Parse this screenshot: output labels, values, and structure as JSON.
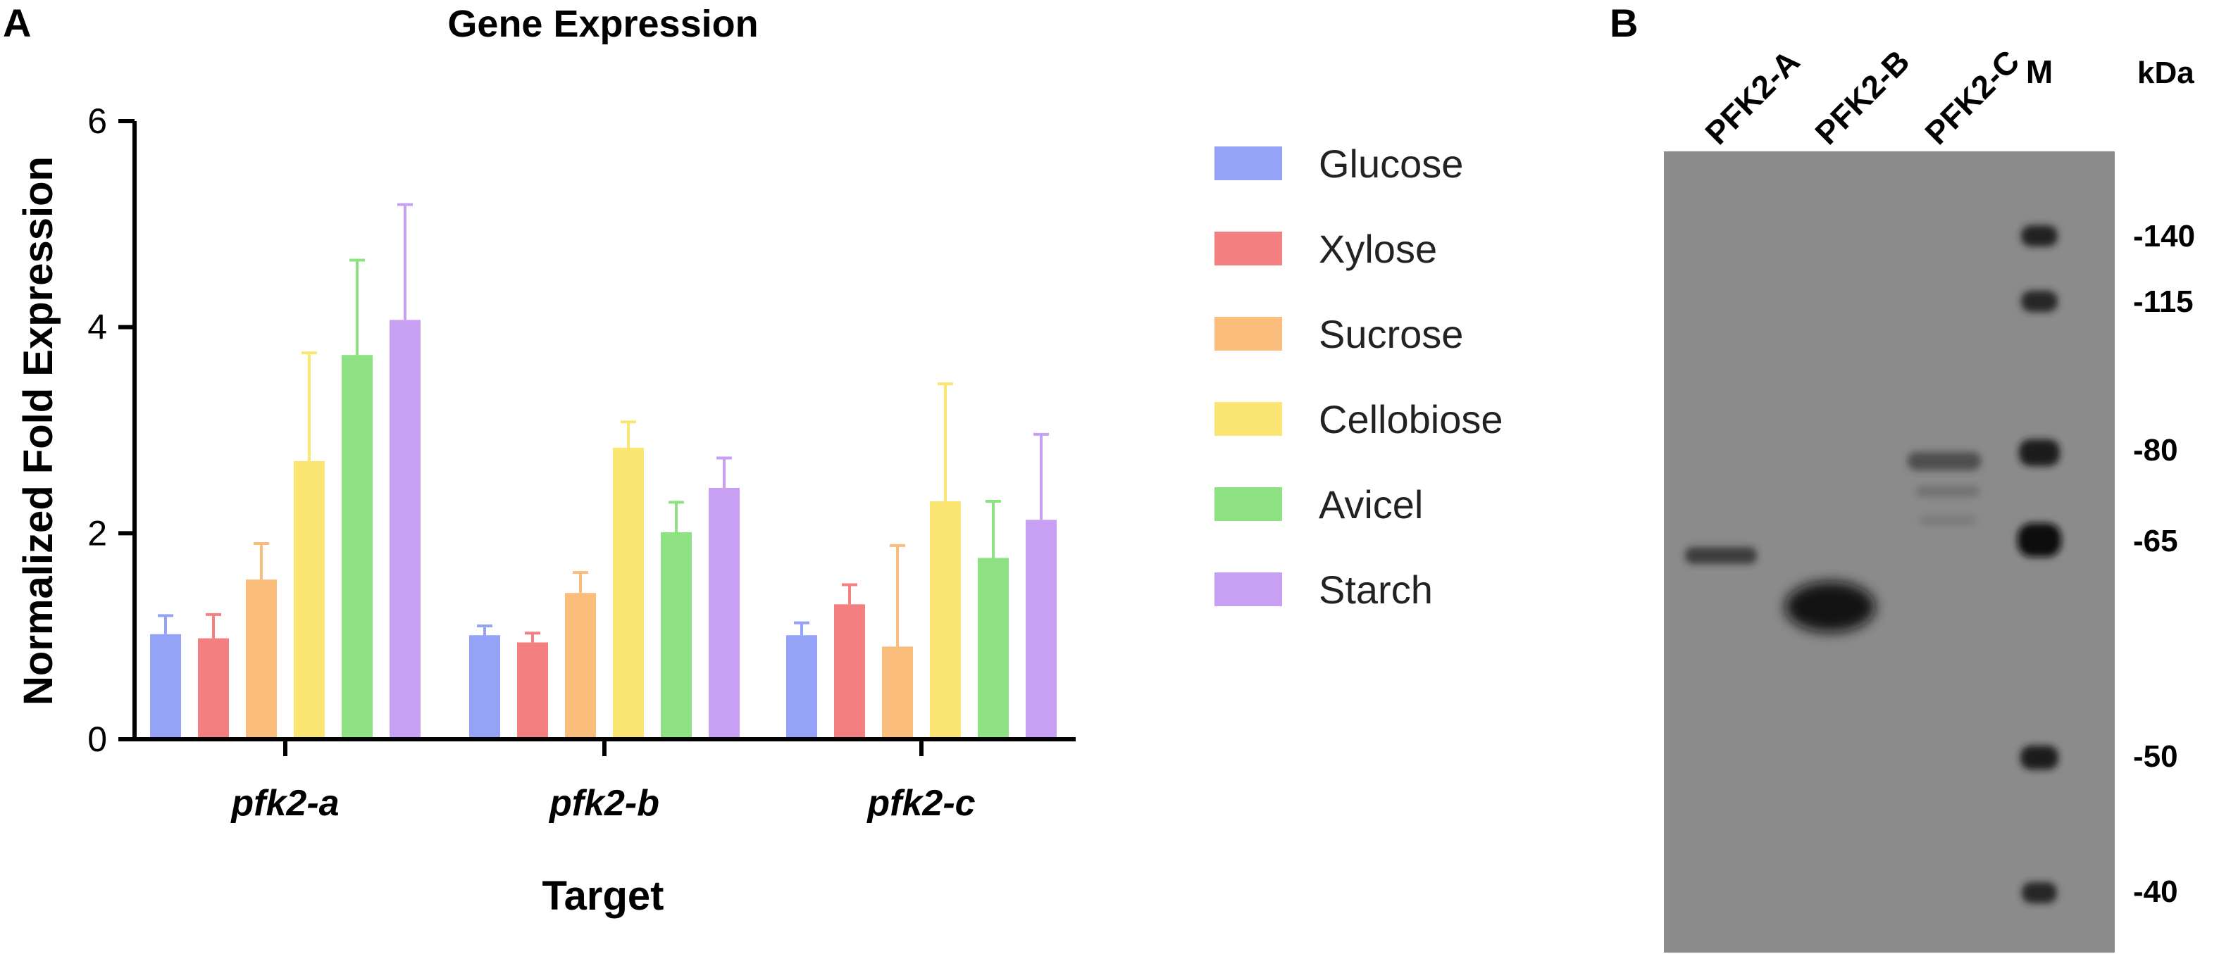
{
  "panel_a_label": "A",
  "panel_b_label": "B",
  "colors": {
    "Glucose": "#94a3f5",
    "Xylose": "#f47f80",
    "Sucrose": "#fbbd7c",
    "Cellobiose": "#fbe673",
    "Avicel": "#8ee283",
    "Starch": "#c7a0f4",
    "gel_background": "#8b8b8b"
  },
  "chart_data": {
    "type": "bar",
    "title": "Gene Expression",
    "xlabel": "Target",
    "ylabel": "Normalized Fold Expression",
    "ylim": [
      0,
      6
    ],
    "yticks": [
      "0",
      "2",
      "4",
      "6"
    ],
    "categories": [
      "pfk2-a",
      "pfk2-b",
      "pfk2-c"
    ],
    "legend_position": "right",
    "series": [
      {
        "name": "Glucose",
        "values": [
          1.02,
          1.01,
          1.01
        ],
        "errors": [
          0.18,
          0.09,
          0.12
        ]
      },
      {
        "name": "Xylose",
        "values": [
          0.98,
          0.94,
          1.31
        ],
        "errors": [
          0.23,
          0.09,
          0.19
        ]
      },
      {
        "name": "Sucrose",
        "values": [
          1.55,
          1.42,
          0.9
        ],
        "errors": [
          0.35,
          0.2,
          0.98
        ]
      },
      {
        "name": "Cellobiose",
        "values": [
          2.7,
          2.83,
          2.31
        ],
        "errors": [
          1.05,
          0.25,
          1.14
        ]
      },
      {
        "name": "Avicel",
        "values": [
          3.73,
          2.01,
          1.76
        ],
        "errors": [
          0.92,
          0.29,
          0.55
        ]
      },
      {
        "name": "Starch",
        "values": [
          4.07,
          2.44,
          2.13
        ],
        "errors": [
          1.12,
          0.29,
          0.83
        ]
      }
    ]
  },
  "gel": {
    "lane_labels": [
      "PFK2-A",
      "PFK2-B",
      "PFK2-C",
      "M"
    ],
    "kda_title": "kDa",
    "markers": [
      "-140",
      "-115",
      "-80",
      "-65",
      "-50",
      "-40"
    ]
  }
}
